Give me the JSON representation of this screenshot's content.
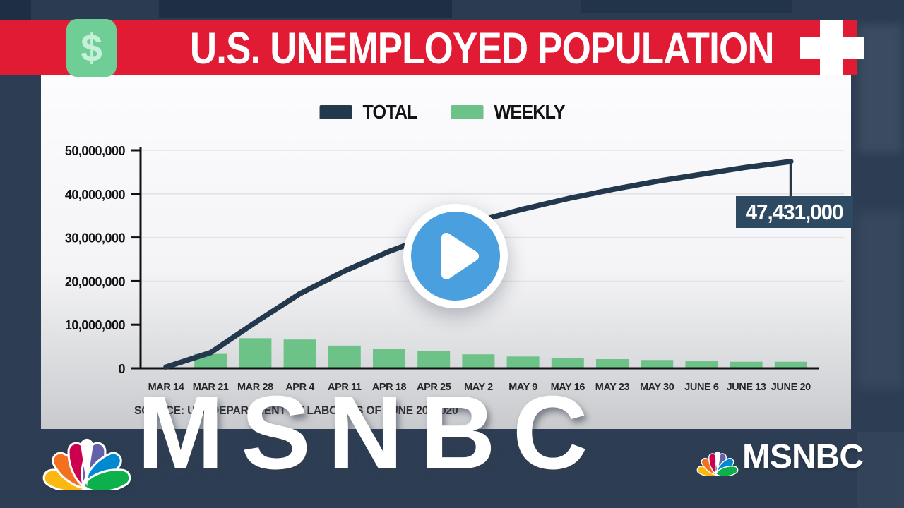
{
  "header": {
    "title": "U.S. UNEMPLOYED POPULATION",
    "dollar_glyph": "$"
  },
  "chart_data": {
    "type": "line+bar",
    "title": "U.S. UNEMPLOYED POPULATION",
    "categories": [
      "MAR 14",
      "MAR 21",
      "MAR 28",
      "APR 4",
      "APR 11",
      "APR 18",
      "APR 25",
      "MAY 2",
      "MAY 9",
      "MAY 16",
      "MAY 23",
      "MAY 30",
      "JUNE 6",
      "JUNE 13",
      "JUNE 20"
    ],
    "series": [
      {
        "name": "TOTAL",
        "type": "line",
        "color": "#24384d",
        "values": [
          300000,
          3600000,
          10500000,
          17100000,
          22300000,
          26800000,
          30600000,
          33800000,
          36500000,
          38900000,
          41000000,
          42900000,
          44500000,
          46100000,
          47431000
        ]
      },
      {
        "name": "WEEKLY",
        "type": "bar",
        "color": "#6cc287",
        "values": [
          300000,
          3300000,
          6900000,
          6600000,
          5200000,
          4400000,
          3900000,
          3200000,
          2700000,
          2400000,
          2100000,
          1900000,
          1600000,
          1500000,
          1500000
        ]
      }
    ],
    "ylim": [
      0,
      50000000
    ],
    "y_ticks": [
      "0",
      "10,000,000",
      "20,000,000",
      "30,000,000",
      "40,000,000",
      "50,000,000"
    ],
    "grid": true,
    "legend_position": "top-center",
    "annotation": {
      "label": "47,431,000",
      "at": "JUNE 20"
    },
    "source": "SOURCE: U.S. DEPARTMENT OF LABOR AS OF JUNE 20, 2020"
  },
  "branding": {
    "watermark_text": "MSNBC",
    "corner_logo_text": "MSNBC"
  },
  "colors": {
    "banner_red": "#e01b33",
    "background_navy": "#2d3e54",
    "icon_green": "#6fce96",
    "play_blue": "#4aa0de",
    "callout_navy": "#2e4a63"
  }
}
